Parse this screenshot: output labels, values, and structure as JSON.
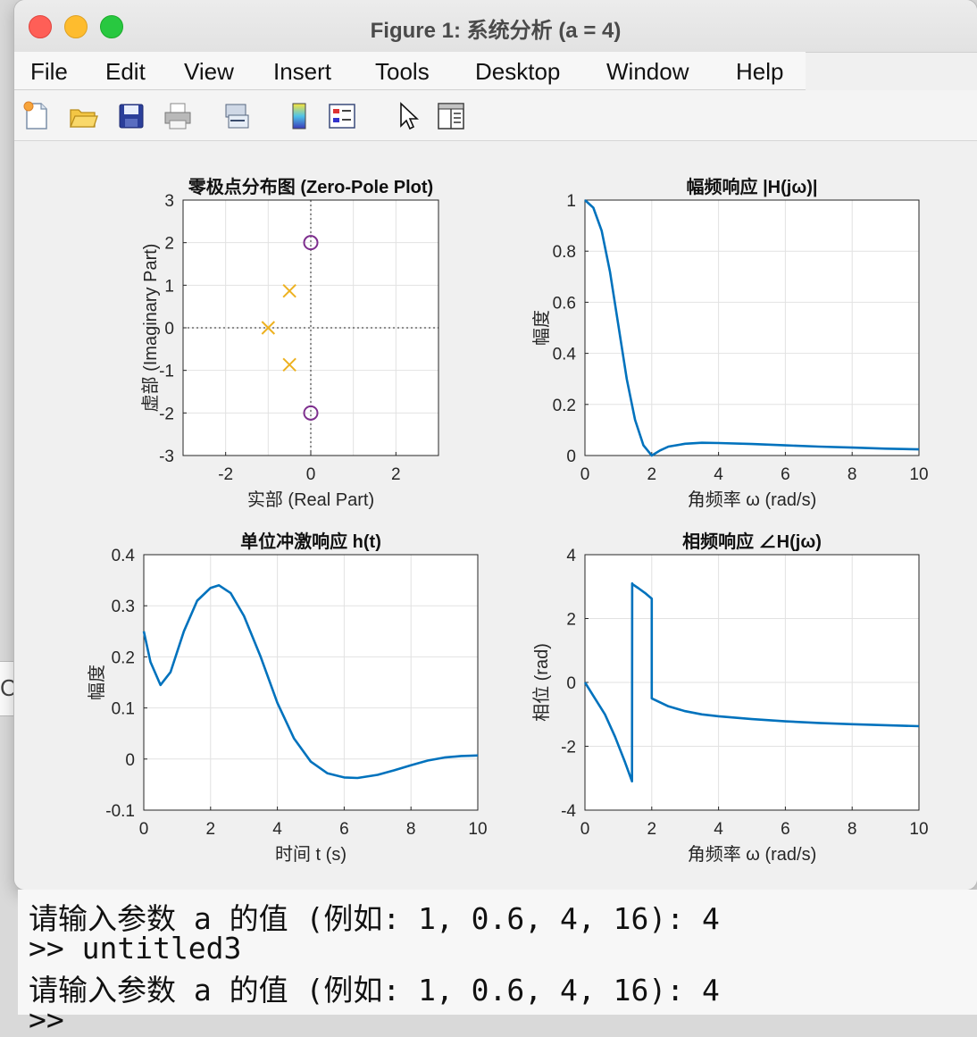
{
  "window": {
    "title": "Figure 1: 系统分析 (a = 4)"
  },
  "menu": [
    "File",
    "Edit",
    "View",
    "Insert",
    "Tools",
    "Desktop",
    "Window",
    "Help"
  ],
  "toolbar_icons": [
    "new-figure-icon",
    "open-file-icon",
    "save-icon",
    "print-icon",
    "link-icon",
    "colorbar-icon",
    "legend-icon",
    "pointer-icon",
    "property-panel-icon"
  ],
  "console": {
    "lines": [
      "请输入参数 a 的值 (例如: 1, 0.6, 4, 16): 4",
      ">> untitled3",
      "请输入参数 a 的值 (例如: 1, 0.6, 4, 16): 4",
      ">>"
    ]
  },
  "left_strip_text": "Co",
  "colors": {
    "line": "#0072bd",
    "pole": "#edb120",
    "zero": "#7e2f8e"
  },
  "chart_data": [
    {
      "type": "scatter",
      "title": "零极点分布图 (Zero-Pole Plot)",
      "xlabel": "实部 (Real Part)",
      "ylabel": "虚部 (Imaginary Part)",
      "xlim": [
        -3,
        3
      ],
      "ylim": [
        -3,
        3
      ],
      "xticks": [
        "-2",
        "0",
        "2"
      ],
      "yticks": [
        "3",
        "2",
        "1",
        "0",
        "-1",
        "-2",
        "-3"
      ],
      "poles": [
        [
          -1,
          0
        ],
        [
          -0.5,
          0.866
        ],
        [
          -0.5,
          -0.866
        ]
      ],
      "zeros": [
        [
          0,
          2
        ],
        [
          0,
          -2
        ]
      ],
      "grid": true
    },
    {
      "type": "line",
      "title": "幅频响应 |H(jω)|",
      "xlabel": "角频率 ω (rad/s)",
      "ylabel": "幅度",
      "xlim": [
        0,
        10
      ],
      "ylim": [
        0,
        1
      ],
      "xticks": [
        "0",
        "2",
        "4",
        "6",
        "8",
        "10"
      ],
      "yticks": [
        "1",
        "0.8",
        "0.6",
        "0.4",
        "0.2",
        "0"
      ],
      "x": [
        0,
        0.25,
        0.5,
        0.75,
        1,
        1.25,
        1.5,
        1.75,
        2,
        2.25,
        2.5,
        3,
        3.5,
        4,
        5,
        6,
        7,
        8,
        9,
        10
      ],
      "y": [
        1,
        0.97,
        0.88,
        0.72,
        0.51,
        0.3,
        0.14,
        0.04,
        0,
        0.02,
        0.035,
        0.046,
        0.05,
        0.049,
        0.045,
        0.04,
        0.035,
        0.031,
        0.027,
        0.024
      ],
      "grid": true
    },
    {
      "type": "line",
      "title": "单位冲激响应 h(t)",
      "xlabel": "时间 t (s)",
      "ylabel": "幅度",
      "xlim": [
        0,
        10
      ],
      "ylim": [
        -0.1,
        0.4
      ],
      "xticks": [
        "0",
        "2",
        "4",
        "6",
        "8",
        "10"
      ],
      "yticks": [
        "0.4",
        "0.3",
        "0.2",
        "0.1",
        "0",
        "-0.1"
      ],
      "x": [
        0,
        0.2,
        0.5,
        0.8,
        1.2,
        1.6,
        2.0,
        2.25,
        2.6,
        3.0,
        3.5,
        4.0,
        4.5,
        5.0,
        5.5,
        6.0,
        6.4,
        7.0,
        7.5,
        8.0,
        8.5,
        9.0,
        9.5,
        10
      ],
      "y": [
        0.25,
        0.19,
        0.145,
        0.17,
        0.25,
        0.31,
        0.335,
        0.34,
        0.325,
        0.28,
        0.2,
        0.11,
        0.04,
        -0.005,
        -0.028,
        -0.036,
        -0.037,
        -0.031,
        -0.022,
        -0.012,
        -0.003,
        0.003,
        0.006,
        0.007
      ],
      "grid": true
    },
    {
      "type": "line",
      "title": "相频响应 ∠H(jω)",
      "xlabel": "角频率 ω (rad/s)",
      "ylabel": "相位 (rad)",
      "xlim": [
        0,
        10
      ],
      "ylim": [
        -4,
        4
      ],
      "xticks": [
        "0",
        "2",
        "4",
        "6",
        "8",
        "10"
      ],
      "yticks": [
        "4",
        "2",
        "0",
        "-2",
        "-4"
      ],
      "x": [
        0,
        0.3,
        0.6,
        0.9,
        1.2,
        1.41,
        1.414,
        1.42,
        1.6,
        1.8,
        1.999,
        2.0,
        2.001,
        2.5,
        3,
        3.5,
        4,
        5,
        6,
        7,
        8,
        9,
        10
      ],
      "y": [
        0,
        -0.5,
        -1.0,
        -1.7,
        -2.5,
        -3.1,
        3.1,
        3.08,
        2.95,
        2.8,
        2.62,
        0,
        -0.5,
        -0.75,
        -0.9,
        -1.0,
        -1.06,
        -1.15,
        -1.22,
        -1.27,
        -1.31,
        -1.34,
        -1.37
      ],
      "grid": true
    }
  ]
}
